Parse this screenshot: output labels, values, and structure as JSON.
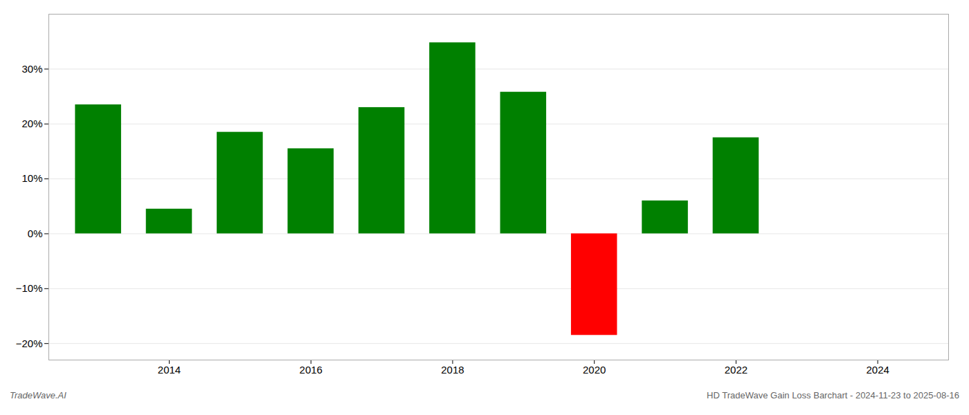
{
  "chart_data": {
    "type": "bar",
    "x": [
      2013,
      2014,
      2015,
      2016,
      2017,
      2018,
      2019,
      2020,
      2021,
      2022,
      2023
    ],
    "values": [
      23.5,
      4.5,
      18.5,
      15.5,
      23.0,
      34.8,
      25.8,
      -18.5,
      6.0,
      17.5,
      null
    ],
    "colors": [
      "#008000",
      "#008000",
      "#008000",
      "#008000",
      "#008000",
      "#008000",
      "#008000",
      "#ff0000",
      "#008000",
      "#008000",
      null
    ],
    "xlim": [
      2012.3,
      2025.0
    ],
    "xticks": [
      2014,
      2016,
      2018,
      2020,
      2022,
      2024
    ],
    "ylim": [
      -23,
      40
    ],
    "yticks": [
      {
        "value": -20,
        "label": "−20%"
      },
      {
        "value": -10,
        "label": "−10%"
      },
      {
        "value": 0,
        "label": "0%"
      },
      {
        "value": 10,
        "label": "10%"
      },
      {
        "value": 20,
        "label": "20%"
      },
      {
        "value": 30,
        "label": "30%"
      }
    ],
    "grid": true,
    "annotations": [
      "TradeWave.AI",
      "HD TradeWave Gain Loss Barchart - 2024-11-23 to 2025-08-16"
    ]
  }
}
